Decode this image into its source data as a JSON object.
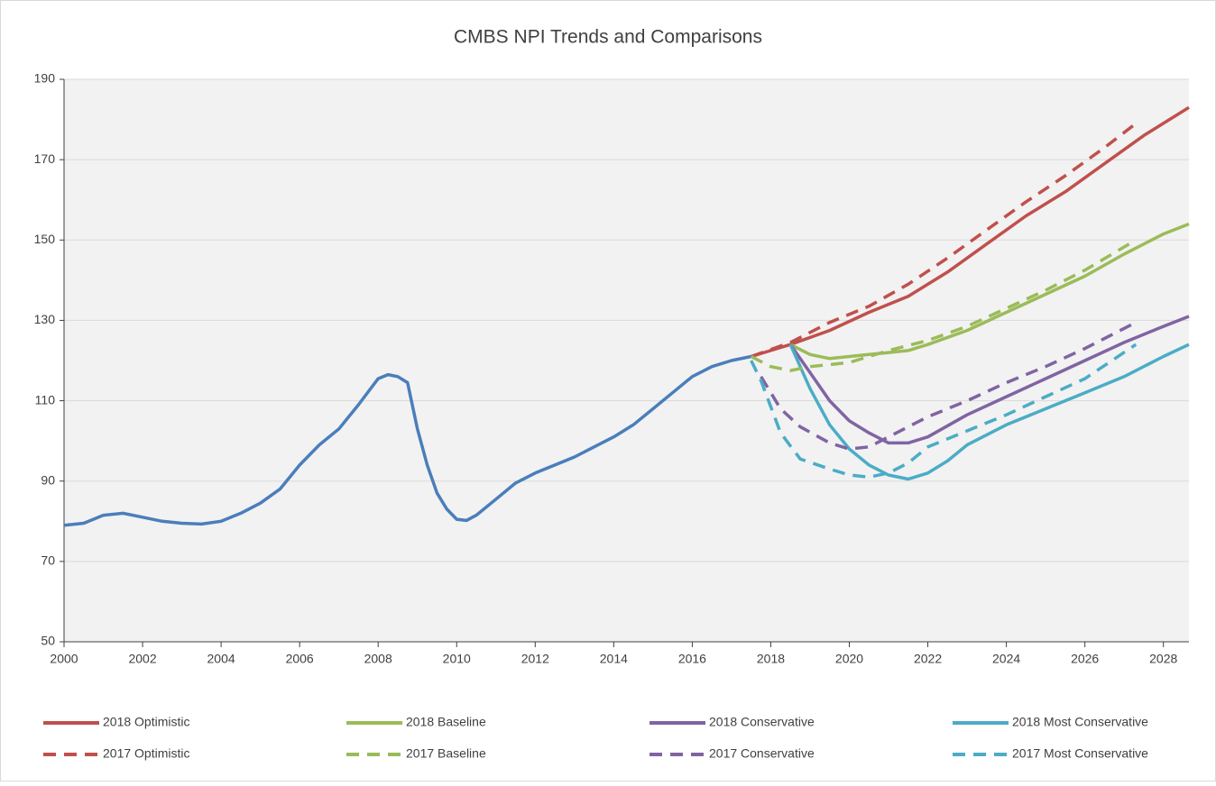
{
  "chart_data": {
    "type": "line",
    "title": "CMBS NPI Trends and Comparisons",
    "xlim": [
      2000,
      2028.65
    ],
    "xticks": [
      2000,
      2002,
      2004,
      2006,
      2008,
      2010,
      2012,
      2014,
      2016,
      2018,
      2020,
      2022,
      2024,
      2026,
      2028
    ],
    "ylim": [
      50,
      190
    ],
    "yticks": [
      50,
      70,
      90,
      110,
      130,
      150,
      170,
      190
    ],
    "grid": true,
    "series": [
      {
        "color": "#4a7ebb",
        "dash": false,
        "x": [
          2000,
          2000.5,
          2001,
          2001.5,
          2002,
          2002.5,
          2003,
          2003.5,
          2004,
          2004.5,
          2005,
          2005.5,
          2006,
          2006.5,
          2007,
          2007.5,
          2008,
          2008.25,
          2008.5,
          2008.75,
          2009,
          2009.25,
          2009.5,
          2009.75,
          2010,
          2010.25,
          2010.5,
          2011,
          2011.5,
          2012,
          2012.5,
          2013,
          2013.5,
          2014,
          2014.5,
          2015,
          2015.5,
          2016,
          2016.5,
          2017,
          2017.5
        ],
        "values": [
          79,
          79.5,
          81.5,
          82,
          81,
          80,
          79.5,
          79.3,
          80,
          82,
          84.5,
          88,
          94,
          99,
          103,
          109,
          115.5,
          116.5,
          116,
          114.5,
          103,
          94,
          87,
          83,
          80.5,
          80.2,
          81.5,
          85.5,
          89.5,
          92,
          94,
          96,
          98.5,
          101,
          104,
          108,
          112,
          116,
          118.5,
          120,
          121
        ]
      },
      {
        "name": "2018 Optimistic",
        "color": "#c0504d",
        "dash": false,
        "x": [
          2017.5,
          2018.5,
          2019.5,
          2020.5,
          2021.5,
          2022.5,
          2023.5,
          2024.5,
          2025.5,
          2026.5,
          2027.5,
          2028.65
        ],
        "values": [
          121,
          124,
          127.5,
          132,
          136,
          142,
          149,
          156,
          162,
          169,
          176,
          183
        ]
      },
      {
        "name": "2018 Baseline",
        "color": "#9bbb59",
        "dash": false,
        "x": [
          2018.5,
          2019,
          2019.5,
          2020,
          2020.5,
          2021,
          2021.5,
          2022,
          2023,
          2024,
          2025,
          2026,
          2027,
          2028,
          2028.65
        ],
        "values": [
          124,
          121.5,
          120.5,
          121,
          121.5,
          122,
          122.5,
          124,
          127.5,
          132,
          136.5,
          141,
          146.5,
          151.5,
          154
        ]
      },
      {
        "name": "2018 Conservative",
        "color": "#8064a2",
        "dash": false,
        "x": [
          2018.5,
          2019,
          2019.5,
          2020,
          2020.5,
          2021,
          2021.5,
          2022,
          2023,
          2024,
          2025,
          2026,
          2027,
          2028,
          2028.65
        ],
        "values": [
          124,
          117,
          110,
          105,
          102,
          99.5,
          99.5,
          101,
          106.5,
          111,
          115.5,
          120,
          124.5,
          128.5,
          131
        ]
      },
      {
        "name": "2018 Most Conservative",
        "color": "#4bacc6",
        "dash": false,
        "x": [
          2018.5,
          2019,
          2019.5,
          2020,
          2020.5,
          2021,
          2021.5,
          2022,
          2022.5,
          2023,
          2024,
          2025,
          2026,
          2027,
          2028,
          2028.65
        ],
        "values": [
          124,
          113,
          104,
          98,
          94,
          91.5,
          90.5,
          92,
          95,
          99,
          104,
          108,
          112,
          116,
          121,
          124
        ]
      },
      {
        "name": "2017 Optimistic",
        "color": "#c0504d",
        "dash": true,
        "x": [
          2017.5,
          2018.5,
          2019.5,
          2020.5,
          2021.5,
          2022.5,
          2023.5,
          2024.5,
          2025.5,
          2026.5,
          2027.3
        ],
        "values": [
          121,
          124.5,
          129.5,
          133.5,
          139,
          145.5,
          152.5,
          159.5,
          166,
          173,
          179
        ]
      },
      {
        "name": "2017 Baseline",
        "color": "#9bbb59",
        "dash": true,
        "x": [
          2017.5,
          2018,
          2018.5,
          2019,
          2020,
          2020.5,
          2021,
          2022,
          2023,
          2024,
          2025,
          2026,
          2027.3
        ],
        "values": [
          121,
          118.5,
          117.5,
          118.5,
          119.5,
          121,
          122.5,
          125,
          128.5,
          133,
          137.5,
          142.5,
          150
        ]
      },
      {
        "name": "2017 Conservative",
        "color": "#8064a2",
        "dash": true,
        "x": [
          2017.75,
          2018.25,
          2018.75,
          2019.5,
          2020,
          2020.5,
          2021,
          2022,
          2023,
          2024,
          2025,
          2026,
          2027.2
        ],
        "values": [
          116,
          108,
          103.5,
          99.5,
          98,
          98.5,
          101,
          106,
          110,
          114.5,
          118.5,
          123,
          129
        ]
      },
      {
        "name": "2017 Most Conservative",
        "color": "#4bacc6",
        "dash": true,
        "x": [
          2017.5,
          2017.75,
          2018.25,
          2018.75,
          2019.5,
          2020,
          2020.5,
          2021,
          2021.5,
          2022,
          2023,
          2024,
          2025,
          2026,
          2027.3
        ],
        "values": [
          120,
          115,
          102,
          95.5,
          93,
          91.5,
          91,
          92,
          94.5,
          98.5,
          102.5,
          106.5,
          111,
          115.5,
          124
        ]
      }
    ]
  }
}
